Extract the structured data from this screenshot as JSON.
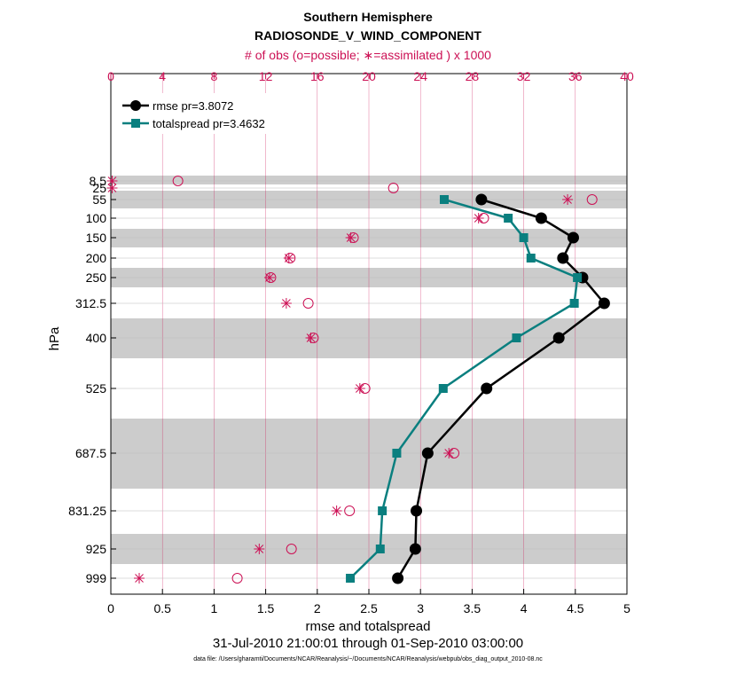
{
  "chart_data": {
    "type": "line",
    "title": "Southern Hemisphere",
    "subtitle": "RADIOSONDE_V_WIND_COMPONENT",
    "top_axis_label": "# of obs (o=possible; ∗=assimilated ) x 1000",
    "xlabel": "rmse and totalspread",
    "ylabel": "hPa",
    "date_range": "31-Jul-2010 21:00:01 through 01-Sep-2010 03:00:00",
    "data_file": "data file: /Users/gharamti/Documents/NCAR/Reanalysis/~/Documents/NCAR/Reanalysis/webpub/obs_diag_output_2010-08.nc",
    "xlim": [
      0,
      5
    ],
    "x_ticks": [
      "0",
      "0.5",
      "1",
      "1.5",
      "2",
      "2.5",
      "3",
      "3.5",
      "4",
      "4.5",
      "5"
    ],
    "top_xlim": [
      0,
      40
    ],
    "top_ticks": [
      "0",
      "4",
      "8",
      "12",
      "16",
      "20",
      "24",
      "28",
      "32",
      "36",
      "40"
    ],
    "y_scale": "reversed pressure levels",
    "levels": [
      8.5,
      25,
      55,
      100,
      150,
      200,
      250,
      312.5,
      400,
      525,
      687.5,
      831.25,
      925,
      999
    ],
    "level_labels": [
      "8.5",
      "25",
      "55",
      "100",
      "150",
      "200",
      "250",
      "312.5",
      "400",
      "525",
      "687.5",
      "831.25",
      "925",
      "999"
    ],
    "grid": true,
    "legend_position": "top-left",
    "series": [
      {
        "name": "rmse pr=3.8072",
        "color": "#000000",
        "marker": "circle",
        "levels": [
          55,
          100,
          150,
          200,
          250,
          312.5,
          400,
          525,
          687.5,
          831.25,
          925,
          999
        ],
        "values": [
          3.59,
          4.17,
          4.48,
          4.38,
          4.57,
          4.78,
          4.34,
          3.64,
          3.07,
          2.96,
          2.95,
          2.78
        ]
      },
      {
        "name": "totalspread pr=3.4632",
        "color": "#0a7f7f",
        "marker": "square",
        "levels": [
          55,
          100,
          150,
          200,
          250,
          312.5,
          400,
          525,
          687.5,
          831.25,
          925,
          999
        ],
        "values": [
          3.23,
          3.85,
          4.0,
          4.07,
          4.52,
          4.49,
          3.93,
          3.22,
          2.77,
          2.63,
          2.61,
          2.32
        ]
      }
    ],
    "obs_counts": {
      "units": "thousands",
      "color": "#cc1155",
      "levels": [
        8.5,
        25,
        55,
        100,
        150,
        200,
        250,
        312.5,
        400,
        525,
        687.5,
        831.25,
        925,
        999
      ],
      "possible": [
        5.2,
        21.9,
        37.3,
        28.9,
        18.8,
        13.9,
        12.4,
        15.3,
        15.7,
        19.7,
        26.6,
        18.5,
        14.0,
        9.8
      ],
      "assimilated": [
        0.1,
        0.1,
        35.4,
        28.5,
        18.6,
        13.8,
        12.3,
        13.6,
        15.5,
        19.3,
        26.2,
        17.5,
        11.5,
        2.2
      ]
    }
  }
}
